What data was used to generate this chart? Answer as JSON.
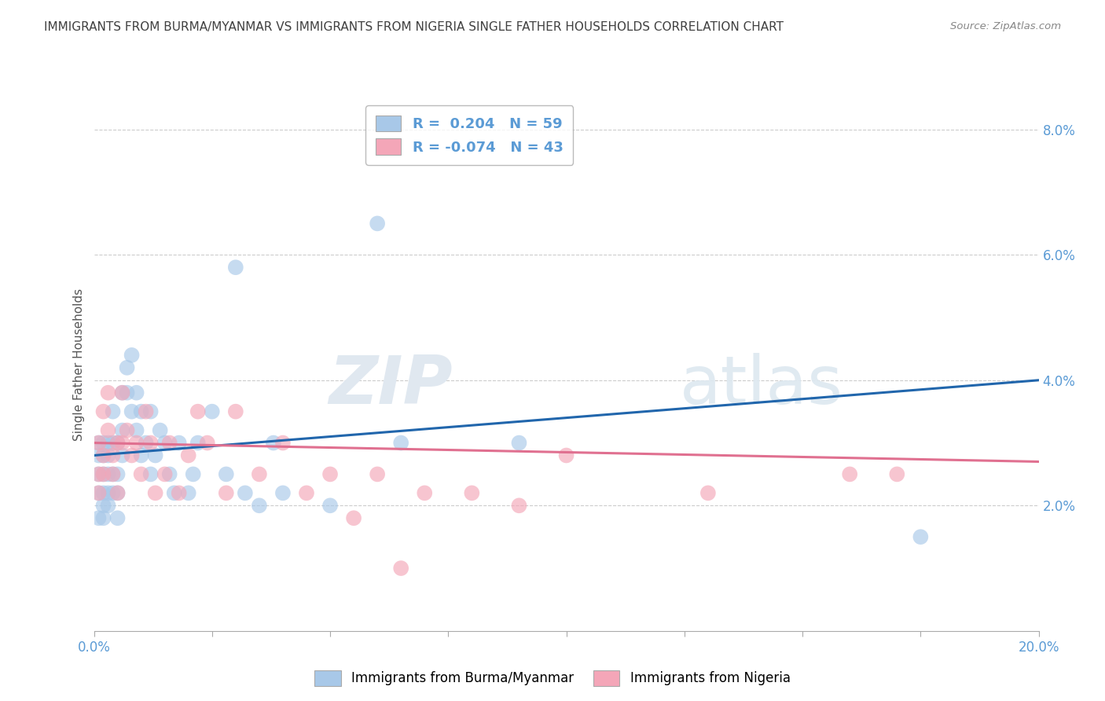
{
  "title": "IMMIGRANTS FROM BURMA/MYANMAR VS IMMIGRANTS FROM NIGERIA SINGLE FATHER HOUSEHOLDS CORRELATION CHART",
  "source": "Source: ZipAtlas.com",
  "ylabel": "Single Father Households",
  "xlim": [
    0.0,
    0.2
  ],
  "ylim": [
    0.0,
    0.085
  ],
  "yticks": [
    0.02,
    0.04,
    0.06,
    0.08
  ],
  "ytick_labels": [
    "2.0%",
    "4.0%",
    "6.0%",
    "8.0%"
  ],
  "xticks": [
    0.0,
    0.025,
    0.05,
    0.075,
    0.1,
    0.125,
    0.15,
    0.175,
    0.2
  ],
  "xtick_labels": [
    "0.0%",
    "",
    "",
    "",
    "",
    "",
    "",
    "",
    "20.0%"
  ],
  "blue_R": 0.204,
  "blue_N": 59,
  "pink_R": -0.074,
  "pink_N": 43,
  "legend_label1": "Immigrants from Burma/Myanmar",
  "legend_label2": "Immigrants from Nigeria",
  "blue_color": "#a8c8e8",
  "pink_color": "#f4a6b8",
  "blue_line_color": "#2166ac",
  "pink_line_color": "#e07090",
  "background_color": "#ffffff",
  "grid_color": "#cccccc",
  "title_color": "#404040",
  "axis_color": "#5b9bd5",
  "blue_line_start_y": 0.028,
  "blue_line_end_y": 0.04,
  "pink_line_start_y": 0.03,
  "pink_line_end_y": 0.027,
  "blue_scatter_x": [
    0.001,
    0.001,
    0.001,
    0.001,
    0.001,
    0.002,
    0.002,
    0.002,
    0.002,
    0.002,
    0.002,
    0.003,
    0.003,
    0.003,
    0.003,
    0.003,
    0.004,
    0.004,
    0.004,
    0.004,
    0.005,
    0.005,
    0.005,
    0.005,
    0.006,
    0.006,
    0.006,
    0.007,
    0.007,
    0.008,
    0.008,
    0.009,
    0.009,
    0.01,
    0.01,
    0.011,
    0.012,
    0.012,
    0.013,
    0.014,
    0.015,
    0.016,
    0.017,
    0.018,
    0.02,
    0.021,
    0.022,
    0.025,
    0.028,
    0.03,
    0.032,
    0.035,
    0.038,
    0.04,
    0.05,
    0.06,
    0.065,
    0.09,
    0.175
  ],
  "blue_scatter_y": [
    0.025,
    0.028,
    0.03,
    0.022,
    0.018,
    0.03,
    0.025,
    0.02,
    0.018,
    0.022,
    0.028,
    0.03,
    0.022,
    0.025,
    0.028,
    0.02,
    0.03,
    0.022,
    0.025,
    0.035,
    0.025,
    0.03,
    0.022,
    0.018,
    0.038,
    0.032,
    0.028,
    0.042,
    0.038,
    0.044,
    0.035,
    0.038,
    0.032,
    0.035,
    0.028,
    0.03,
    0.035,
    0.025,
    0.028,
    0.032,
    0.03,
    0.025,
    0.022,
    0.03,
    0.022,
    0.025,
    0.03,
    0.035,
    0.025,
    0.058,
    0.022,
    0.02,
    0.03,
    0.022,
    0.02,
    0.065,
    0.03,
    0.03,
    0.015
  ],
  "pink_scatter_x": [
    0.001,
    0.001,
    0.001,
    0.002,
    0.002,
    0.002,
    0.003,
    0.003,
    0.004,
    0.004,
    0.005,
    0.005,
    0.006,
    0.006,
    0.007,
    0.008,
    0.009,
    0.01,
    0.011,
    0.012,
    0.013,
    0.015,
    0.016,
    0.018,
    0.02,
    0.022,
    0.024,
    0.028,
    0.03,
    0.035,
    0.04,
    0.045,
    0.05,
    0.055,
    0.06,
    0.065,
    0.07,
    0.08,
    0.09,
    0.1,
    0.13,
    0.16,
    0.17
  ],
  "pink_scatter_y": [
    0.03,
    0.025,
    0.022,
    0.028,
    0.035,
    0.025,
    0.038,
    0.032,
    0.028,
    0.025,
    0.03,
    0.022,
    0.038,
    0.03,
    0.032,
    0.028,
    0.03,
    0.025,
    0.035,
    0.03,
    0.022,
    0.025,
    0.03,
    0.022,
    0.028,
    0.035,
    0.03,
    0.022,
    0.035,
    0.025,
    0.03,
    0.022,
    0.025,
    0.018,
    0.025,
    0.01,
    0.022,
    0.022,
    0.02,
    0.028,
    0.022,
    0.025,
    0.025
  ]
}
